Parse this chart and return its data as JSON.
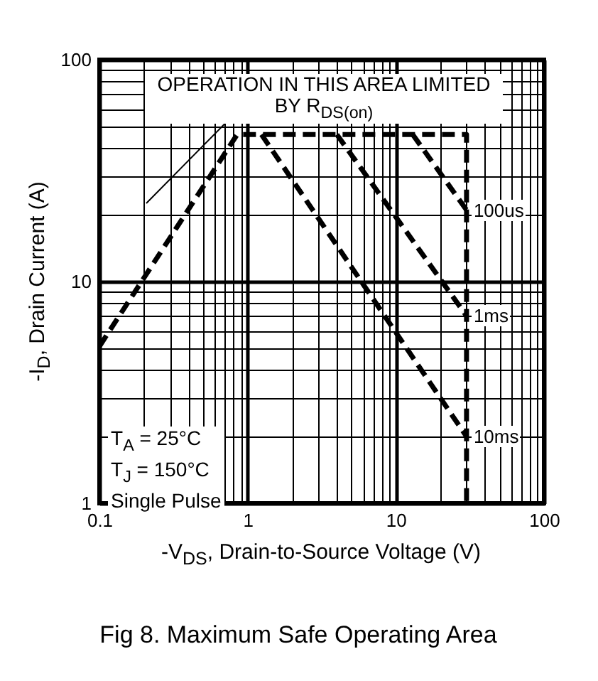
{
  "chart_data": {
    "type": "line",
    "title": "Fig 8.  Maximum Safe Operating Area",
    "xlabel": "-V$_{DS}$, Drain-to-Source Voltage (V)",
    "ylabel": "-I$_{D}$, Drain Current (A)",
    "log": "xy",
    "grid": true,
    "marker": "none",
    "line_style": "dashed",
    "xlim": [
      0.1,
      100
    ],
    "ylim": [
      1,
      100
    ],
    "xticks": [
      0.1,
      {
        "value": 0.2,
        "label": null
      },
      {
        "value": 0.3,
        "label": null
      },
      {
        "value": 0.4,
        "label": null
      },
      {
        "value": 0.5,
        "label": null
      },
      {
        "value": 0.6,
        "label": null
      },
      {
        "value": 0.7,
        "label": null
      },
      {
        "value": 0.8,
        "label": null
      },
      {
        "value": 0.9,
        "label": null
      },
      1,
      {
        "value": 2,
        "label": null
      },
      {
        "value": 3,
        "label": null
      },
      {
        "value": 4,
        "label": null
      },
      {
        "value": 5,
        "label": null
      },
      {
        "value": 6,
        "label": null
      },
      {
        "value": 7,
        "label": null
      },
      {
        "value": 8,
        "label": null
      },
      {
        "value": 9,
        "label": null
      },
      10,
      {
        "value": 20,
        "label": null
      },
      {
        "value": 30,
        "label": null
      },
      {
        "value": 40,
        "label": null
      },
      {
        "value": 50,
        "label": null
      },
      {
        "value": 60,
        "label": null
      },
      {
        "value": 70,
        "label": null
      },
      {
        "value": 80,
        "label": null
      },
      {
        "value": 90,
        "label": null
      },
      100
    ],
    "yticks": [
      1,
      {
        "value": 2,
        "label": null
      },
      {
        "value": 3,
        "label": null
      },
      {
        "value": 4,
        "label": null
      },
      {
        "value": 5,
        "label": null
      },
      {
        "value": 6,
        "label": null
      },
      {
        "value": 7,
        "label": null
      },
      {
        "value": 8,
        "label": null
      },
      {
        "value": 9,
        "label": null
      },
      10,
      {
        "value": 20,
        "label": null
      },
      {
        "value": 30,
        "label": null
      },
      {
        "value": 40,
        "label": null
      },
      {
        "value": 50,
        "label": null
      },
      {
        "value": 60,
        "label": null
      },
      {
        "value": 70,
        "label": null
      },
      {
        "value": 80,
        "label": null
      },
      {
        "value": 90,
        "label": null
      },
      100
    ],
    "series": [
      {
        "color": "#000000",
        "x": [
          0.1,
          0.85,
          30,
          30
        ],
        "values": [
          5.1,
          46,
          46,
          1
        ]
      },
      {
        "name": "100us",
        "color": "#000000",
        "x": [
          13,
          30
        ],
        "values": [
          46,
          21
        ]
      },
      {
        "name": "1ms",
        "color": "#000000",
        "x": [
          4,
          30
        ],
        "values": [
          46,
          7
        ]
      },
      {
        "name": "10ms",
        "color": "#000000",
        "x": [
          1.24,
          30
        ],
        "values": [
          46,
          2
        ]
      }
    ],
    "annotations": [
      "OPERATION IN THIS AREA LIMITED BY R$_{DS(on)}$",
      "T$_{A}$ = 25°C",
      "T$_{J}$ = 150°C",
      "Single Pulse"
    ]
  }
}
